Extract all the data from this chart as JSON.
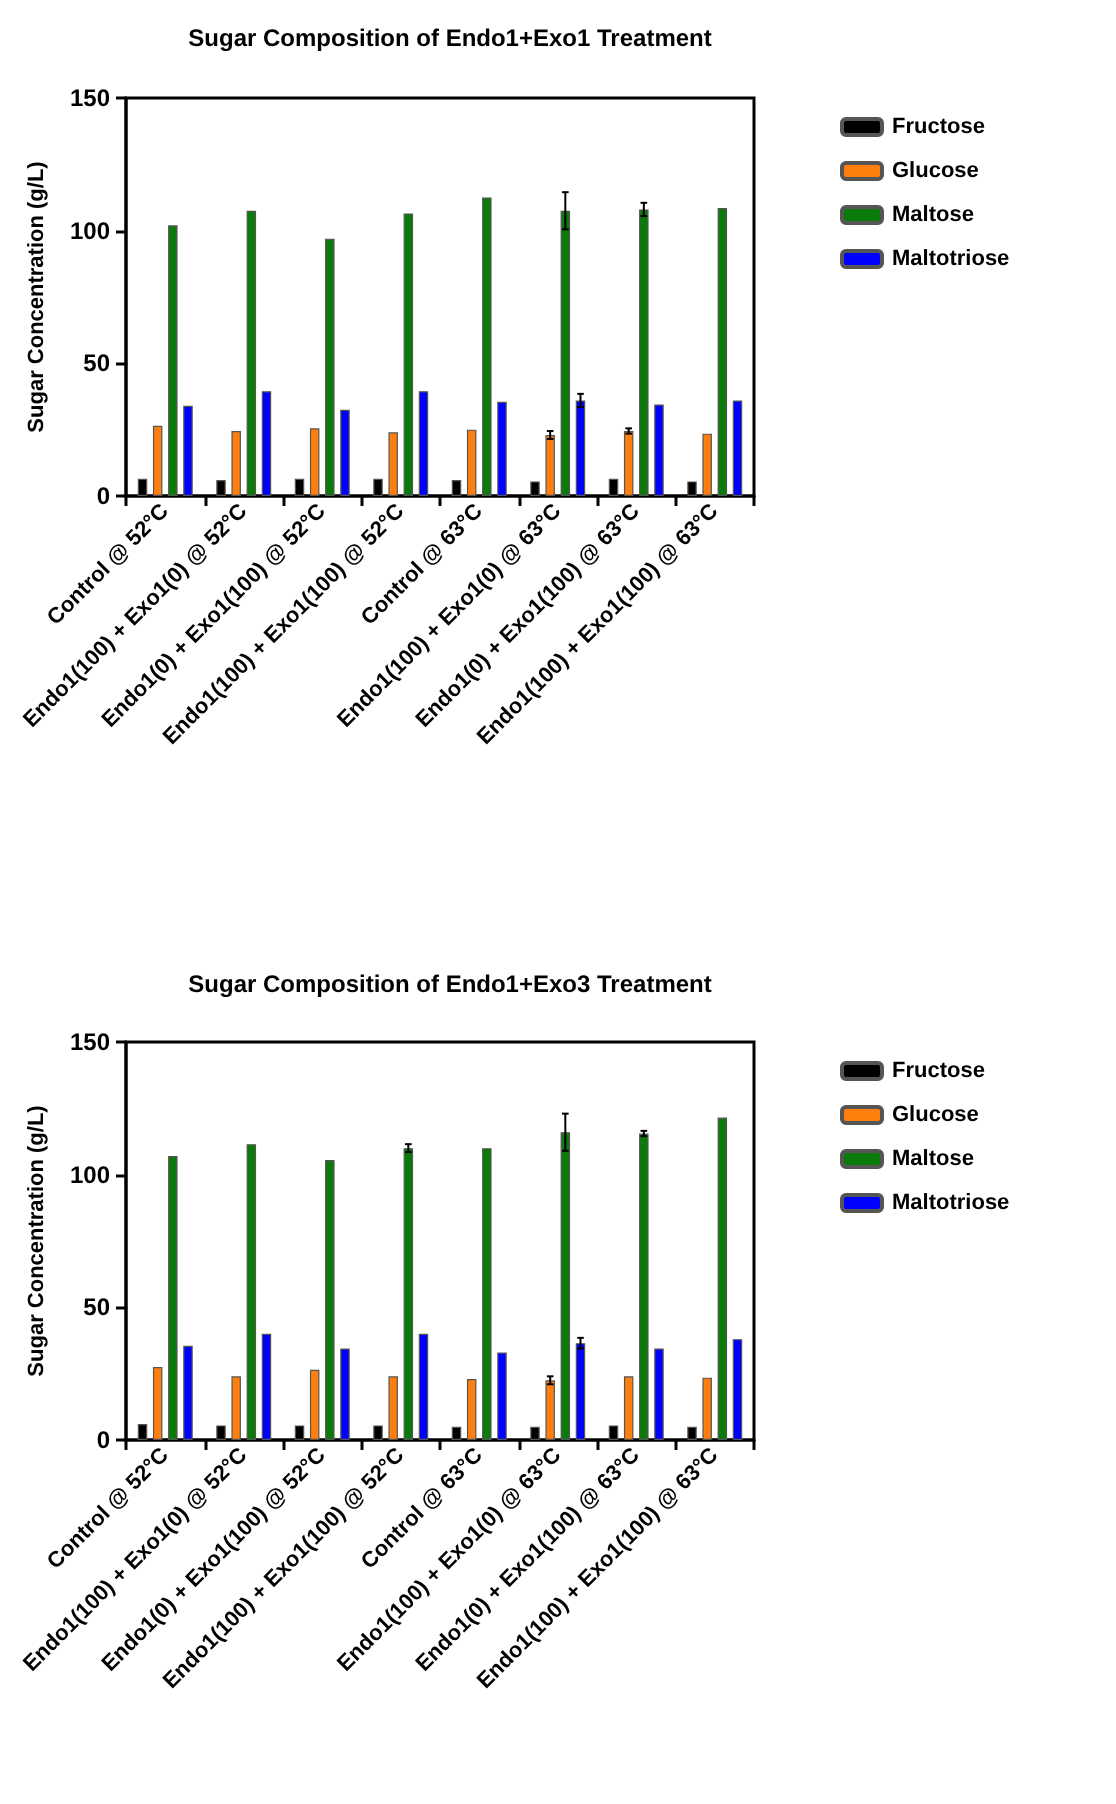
{
  "chart_data": [
    {
      "type": "bar",
      "title": "Sugar Composition of Endo1+Exo1 Treatment",
      "ylabel": "Sugar Concentration (g/L)",
      "categories": [
        "Control @ 52°C",
        "Endo1(100) + Exo1(0) @ 52°C",
        "Endo1(0) + Exo1(100) @ 52°C",
        "Endo1(100) + Exo1(100) @ 52°C",
        "Control @ 63°C",
        "Endo1(100) + Exo1(0) @ 63°C",
        "Endo1(0) + Exo1(100) @ 63°C",
        "Endo1(100) + Exo1(100) @ 63°C"
      ],
      "series": [
        {
          "name": "Fructose",
          "color": "#000000",
          "values": [
            6.5,
            6,
            6.5,
            6.5,
            6,
            5.5,
            6.5,
            5.5
          ]
        },
        {
          "name": "Glucose",
          "color": "#ff7f0e",
          "values": [
            26.5,
            24.5,
            25.5,
            24,
            25,
            23,
            24.5,
            23.5
          ],
          "errors": [
            null,
            null,
            null,
            null,
            null,
            1.5,
            1,
            null
          ]
        },
        {
          "name": "Maltose",
          "color": "#0a7a0a",
          "values": [
            102,
            107.5,
            97,
            106.5,
            112.5,
            107.5,
            108,
            108.5
          ],
          "errors": [
            null,
            null,
            null,
            null,
            null,
            7,
            2.5,
            null
          ]
        },
        {
          "name": "Maltotriose",
          "color": "#0000ff",
          "values": [
            34,
            39.5,
            32.5,
            39.5,
            35.5,
            36,
            34.5,
            36
          ],
          "errors": [
            null,
            null,
            null,
            null,
            null,
            2.5,
            null,
            null
          ]
        }
      ],
      "ylim": [
        0,
        150
      ],
      "yticks": [
        0,
        50,
        100,
        150
      ],
      "grid": false,
      "legend": "right"
    },
    {
      "type": "bar",
      "title": "Sugar Composition of Endo1+Exo3 Treatment",
      "ylabel": "Sugar Concentration (g/L)",
      "categories": [
        "Control @ 52°C",
        "Endo1(100) + Exo1(0) @ 52°C",
        "Endo1(0) + Exo1(100) @ 52°C",
        "Endo1(100) + Exo1(100) @ 52°C",
        "Control @ 63°C",
        "Endo1(100) + Exo1(0) @ 63°C",
        "Endo1(0) + Exo1(100) @ 63°C",
        "Endo1(100) + Exo1(100) @ 63°C"
      ],
      "series": [
        {
          "name": "Fructose",
          "color": "#000000",
          "values": [
            6,
            5.5,
            5.5,
            5.5,
            5,
            5,
            5.5,
            5
          ]
        },
        {
          "name": "Glucose",
          "color": "#ff7f0e",
          "values": [
            27.5,
            24,
            26.5,
            24,
            23,
            22.5,
            24,
            23.5
          ],
          "errors": [
            null,
            null,
            null,
            null,
            null,
            1.5,
            null,
            null
          ]
        },
        {
          "name": "Maltose",
          "color": "#0a7a0a",
          "values": [
            107,
            111.5,
            105.5,
            110,
            110,
            116,
            115.5,
            121.5
          ],
          "errors": [
            null,
            null,
            null,
            1.5,
            null,
            7,
            1,
            null
          ]
        },
        {
          "name": "Maltotriose",
          "color": "#0000ff",
          "values": [
            35.5,
            40,
            34.5,
            40,
            33,
            36.5,
            34.5,
            38
          ],
          "errors": [
            null,
            null,
            null,
            null,
            null,
            2,
            null,
            null
          ]
        }
      ],
      "ylim": [
        0,
        150
      ],
      "yticks": [
        0,
        50,
        100,
        150
      ],
      "grid": false,
      "legend": "right"
    }
  ]
}
